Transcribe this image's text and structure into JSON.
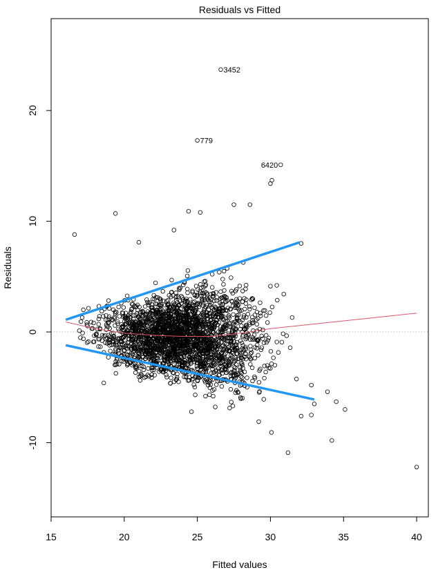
{
  "chart_data": {
    "type": "scatter",
    "title": "Residuals vs Fitted",
    "xlabel": "Fitted values",
    "ylabel": "Residuals",
    "xlim": [
      15,
      40.8
    ],
    "ylim": [
      -16.7,
      28.3
    ],
    "xticks": [
      15,
      20,
      25,
      30,
      35,
      40
    ],
    "yticks": [
      -10,
      0,
      10,
      20
    ],
    "reference_line": {
      "y": 0,
      "style": "dotted",
      "color": "#999999"
    },
    "annotations": [
      {
        "label": "3452",
        "x": 26.6,
        "y": 23.7
      },
      {
        "label": "779",
        "x": 25.0,
        "y": 17.3
      },
      {
        "label": "6420",
        "x": 30.7,
        "y": 15.1
      }
    ],
    "labeled_points": [
      {
        "x": 26.6,
        "y": 23.7
      },
      {
        "x": 25.0,
        "y": 17.3
      },
      {
        "x": 30.7,
        "y": 15.1
      }
    ],
    "notable_points": [
      {
        "x": 40.0,
        "y": -12.2
      },
      {
        "x": 34.2,
        "y": -9.8
      },
      {
        "x": 31.2,
        "y": -10.9
      },
      {
        "x": 29.2,
        "y": -8.1
      },
      {
        "x": 35.1,
        "y": -7.0
      },
      {
        "x": 34.5,
        "y": -6.3
      },
      {
        "x": 33.0,
        "y": -6.5
      },
      {
        "x": 32.8,
        "y": -7.5
      },
      {
        "x": 32.1,
        "y": -7.6
      },
      {
        "x": 33.9,
        "y": -5.4
      },
      {
        "x": 32.8,
        "y": -4.8
      },
      {
        "x": 30.1,
        "y": 13.7
      },
      {
        "x": 30.0,
        "y": 13.4
      },
      {
        "x": 27.5,
        "y": 11.5
      },
      {
        "x": 28.6,
        "y": 11.5
      },
      {
        "x": 24.4,
        "y": 10.9
      },
      {
        "x": 25.2,
        "y": 10.8
      },
      {
        "x": 19.4,
        "y": 10.7
      },
      {
        "x": 16.6,
        "y": 8.8
      },
      {
        "x": 23.4,
        "y": 9.2
      },
      {
        "x": 32.1,
        "y": 8.0
      },
      {
        "x": 24.6,
        "y": -7.2
      },
      {
        "x": 18.6,
        "y": -4.6
      },
      {
        "x": 21.0,
        "y": 8.1
      }
    ],
    "smooth_line": {
      "color": "#DF536B",
      "points": [
        [
          16,
          0.9
        ],
        [
          18,
          0.3
        ],
        [
          20,
          -0.1
        ],
        [
          22,
          -0.3
        ],
        [
          24,
          -0.4
        ],
        [
          26,
          -0.4
        ],
        [
          28,
          -0.1
        ],
        [
          30,
          0.3
        ],
        [
          40,
          1.7
        ]
      ]
    },
    "envelope_lines": {
      "color": "#2196F3",
      "upper": [
        [
          16.0,
          1.1
        ],
        [
          32.0,
          8.1
        ]
      ],
      "lower": [
        [
          16.0,
          -1.2
        ],
        [
          33.0,
          -6.1
        ]
      ]
    }
  }
}
